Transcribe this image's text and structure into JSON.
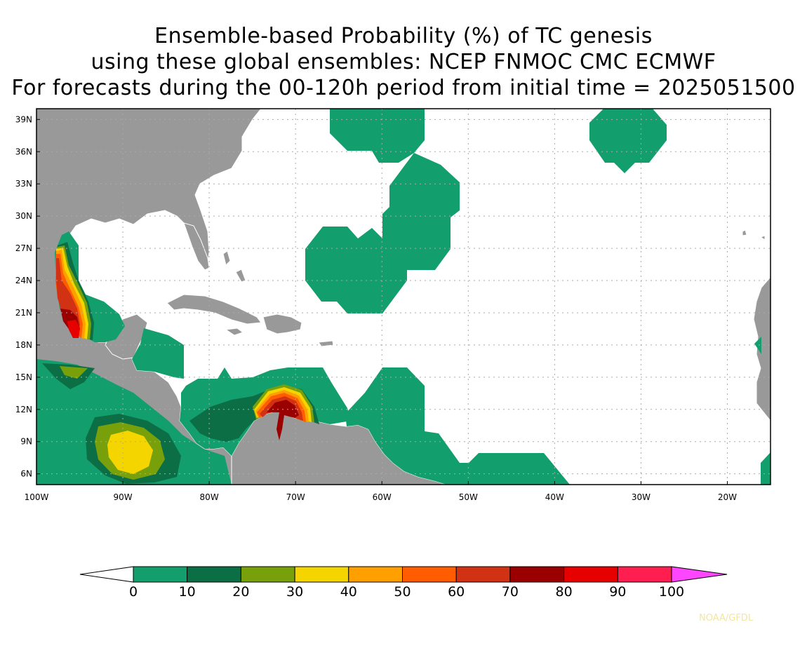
{
  "title": {
    "line1": "Ensemble-based Probability (%) of TC genesis",
    "line2": "using these global ensembles:   NCEP FNMOC CMC ECMWF",
    "line3": "For forecasts during the 00-120h period from initial time = 2025051500"
  },
  "map": {
    "lon_range": [
      -100,
      -15
    ],
    "lat_range": [
      5,
      40
    ],
    "lat_ticks": [
      "39N",
      "36N",
      "33N",
      "30N",
      "27N",
      "24N",
      "21N",
      "18N",
      "15N",
      "12N",
      "9N",
      "6N"
    ],
    "lon_ticks": [
      "100W",
      "90W",
      "80W",
      "70W",
      "60W",
      "50W",
      "40W",
      "30W",
      "20W"
    ],
    "land_color": "#999999",
    "ocean_color": "#ffffff",
    "grid": "dotted"
  },
  "colorbar": {
    "levels": [
      "0",
      "10",
      "20",
      "30",
      "40",
      "50",
      "60",
      "70",
      "80",
      "90",
      "100"
    ],
    "colors": [
      "#139e6e",
      "#0c6e45",
      "#78a00a",
      "#f5d500",
      "#ffa000",
      "#ff5d00",
      "#d23214",
      "#9b0000",
      "#e60000",
      "#ff1e50",
      "#ff46ff"
    ],
    "under_color": "#ffffff"
  },
  "credit": "NOAA/GFDL"
}
